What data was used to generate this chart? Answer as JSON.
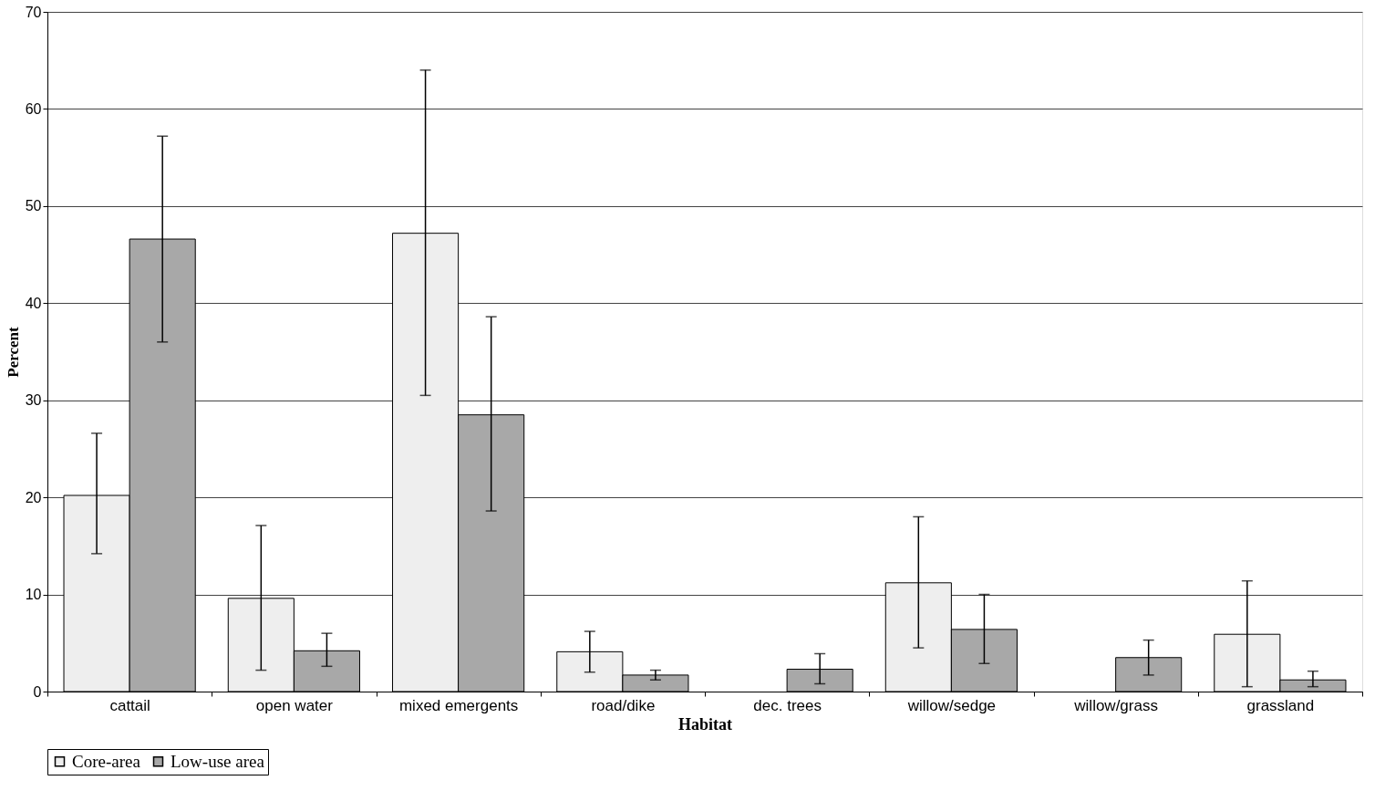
{
  "chart_data": {
    "type": "bar",
    "xlabel": "Habitat",
    "ylabel": "Percent",
    "categories": [
      "cattail",
      "open water",
      "mixed emergents",
      "road/dike",
      "dec. trees",
      "willow/sedge",
      "willow/grass",
      "grassland"
    ],
    "series": [
      {
        "name": "Core-area",
        "color": "#eeeeee",
        "values": [
          20.2,
          9.6,
          47.2,
          4.1,
          null,
          11.2,
          null,
          5.9
        ],
        "errors": [
          [
            14.2,
            26.6
          ],
          [
            2.2,
            17.1
          ],
          [
            30.5,
            64.0
          ],
          [
            2.0,
            6.2
          ],
          null,
          [
            4.5,
            18.0
          ],
          null,
          [
            0.5,
            11.4
          ]
        ]
      },
      {
        "name": "Low-use area",
        "color": "#a8a8a8",
        "values": [
          46.6,
          4.2,
          28.5,
          1.7,
          2.3,
          6.4,
          3.5,
          1.2
        ],
        "errors": [
          [
            36.0,
            57.2
          ],
          [
            2.6,
            6.0
          ],
          [
            18.6,
            38.6
          ],
          [
            1.2,
            2.2
          ],
          [
            0.8,
            3.9
          ],
          [
            2.9,
            10.0
          ],
          [
            1.7,
            5.3
          ],
          [
            0.5,
            2.1
          ]
        ]
      }
    ],
    "ylim": [
      0,
      70
    ],
    "yticks": [
      0,
      10,
      20,
      30,
      40,
      50,
      60,
      70
    ],
    "grid": "y",
    "legend": "bottom"
  }
}
